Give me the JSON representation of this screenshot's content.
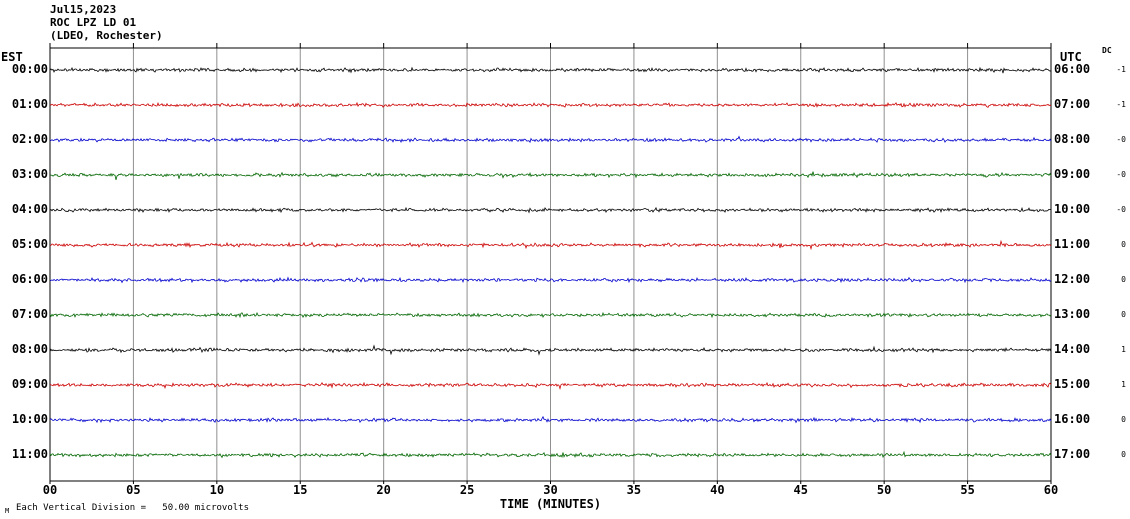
{
  "header": {
    "date": "Jul15,2023",
    "station": "ROC LPZ LD 01",
    "location": "(LDEO, Rochester)"
  },
  "axes": {
    "left_label": "EST",
    "right_label": "UTC",
    "dc_label": "DC",
    "x_label": "TIME (MINUTES)",
    "x_ticks": [
      "00",
      "05",
      "10",
      "15",
      "20",
      "25",
      "30",
      "35",
      "40",
      "45",
      "50",
      "55",
      "60"
    ]
  },
  "footer": {
    "scale_note": "Each Vertical Division =   50.00 microvolts",
    "marker": "M"
  },
  "colors": {
    "black": "#000000",
    "red": "#cc0000",
    "blue": "#0000cc",
    "green": "#006600",
    "grid": "#909090",
    "frame": "#000000"
  },
  "rows": [
    {
      "est": "00:00",
      "utc": "06:00",
      "dc": "-1",
      "color": "black"
    },
    {
      "est": "01:00",
      "utc": "07:00",
      "dc": "-1",
      "color": "red"
    },
    {
      "est": "02:00",
      "utc": "08:00",
      "dc": "-0",
      "color": "blue"
    },
    {
      "est": "03:00",
      "utc": "09:00",
      "dc": "-0",
      "color": "green"
    },
    {
      "est": "04:00",
      "utc": "10:00",
      "dc": "-0",
      "color": "black"
    },
    {
      "est": "05:00",
      "utc": "11:00",
      "dc": "0",
      "color": "red"
    },
    {
      "est": "06:00",
      "utc": "12:00",
      "dc": "0",
      "color": "blue"
    },
    {
      "est": "07:00",
      "utc": "13:00",
      "dc": "0",
      "color": "green"
    },
    {
      "est": "08:00",
      "utc": "14:00",
      "dc": "1",
      "color": "black"
    },
    {
      "est": "09:00",
      "utc": "15:00",
      "dc": "1",
      "color": "red"
    },
    {
      "est": "10:00",
      "utc": "16:00",
      "dc": "0",
      "color": "blue"
    },
    {
      "est": "11:00",
      "utc": "17:00",
      "dc": "0",
      "color": "green"
    }
  ],
  "chart_data": {
    "type": "line",
    "subtype": "helicorder-seismogram",
    "title": "ROC LPZ LD 01 — Jul15,2023 (LDEO, Rochester)",
    "xlabel": "TIME (MINUTES)",
    "x_range_minutes": [
      0,
      60
    ],
    "x_tick_interval_minutes": 5,
    "minutes_per_line": 60,
    "vertical_division_microvolts": 50.0,
    "grid": true,
    "legend_position": "none",
    "series": [
      {
        "name": "EST 00:00 / UTC 06:00",
        "color": "black",
        "dc_offset": "-1",
        "signal": "flat background noise, amplitude well under one division"
      },
      {
        "name": "EST 01:00 / UTC 07:00",
        "color": "red",
        "dc_offset": "-1",
        "signal": "flat background noise"
      },
      {
        "name": "EST 02:00 / UTC 08:00",
        "color": "blue",
        "dc_offset": "-0",
        "signal": "flat background noise"
      },
      {
        "name": "EST 03:00 / UTC 09:00",
        "color": "green",
        "dc_offset": "-0",
        "signal": "flat background noise"
      },
      {
        "name": "EST 04:00 / UTC 10:00",
        "color": "black",
        "dc_offset": "-0",
        "signal": "flat background noise"
      },
      {
        "name": "EST 05:00 / UTC 11:00",
        "color": "red",
        "dc_offset": "0",
        "signal": "flat background noise"
      },
      {
        "name": "EST 06:00 / UTC 12:00",
        "color": "blue",
        "dc_offset": "0",
        "signal": "flat background noise"
      },
      {
        "name": "EST 07:00 / UTC 13:00",
        "color": "green",
        "dc_offset": "0",
        "signal": "flat background noise"
      },
      {
        "name": "EST 08:00 / UTC 14:00",
        "color": "black",
        "dc_offset": "1",
        "signal": "flat background noise"
      },
      {
        "name": "EST 09:00 / UTC 15:00",
        "color": "red",
        "dc_offset": "1",
        "signal": "flat background noise"
      },
      {
        "name": "EST 10:00 / UTC 16:00",
        "color": "blue",
        "dc_offset": "0",
        "signal": "flat background noise"
      },
      {
        "name": "EST 11:00 / UTC 17:00",
        "color": "green",
        "dc_offset": "0",
        "signal": "flat background noise"
      }
    ]
  }
}
